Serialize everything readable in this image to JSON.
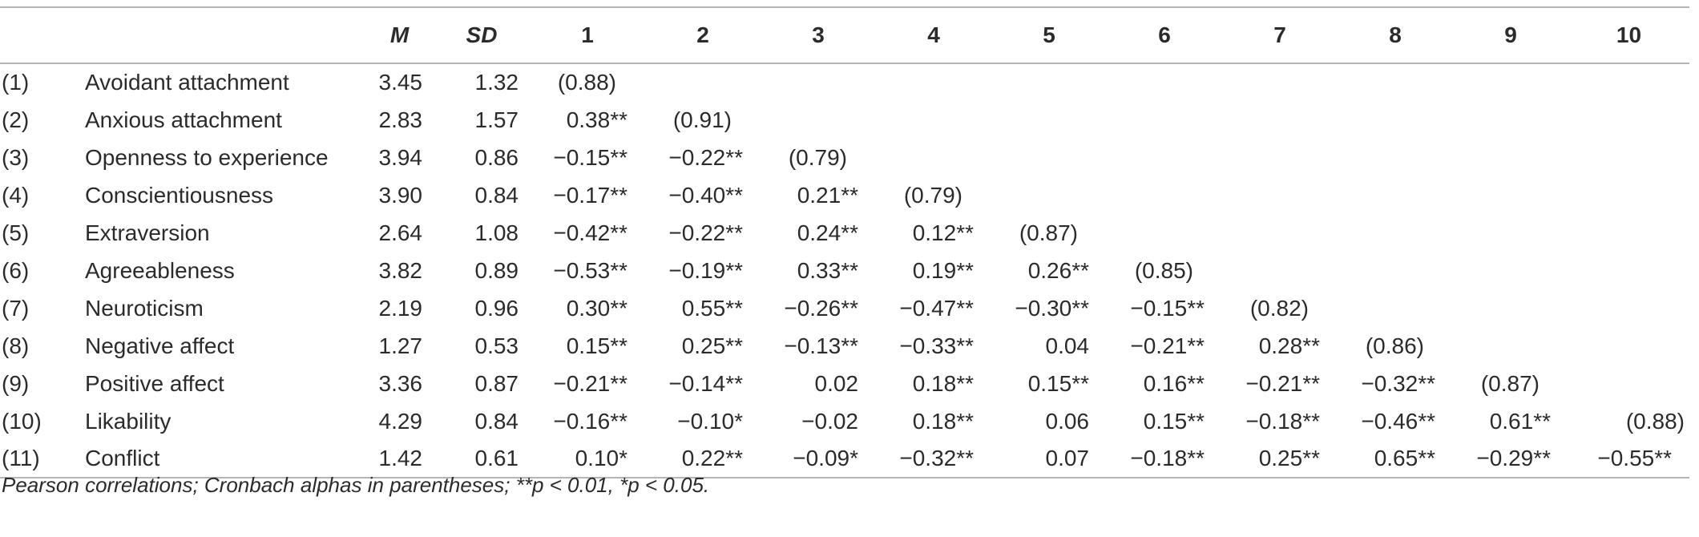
{
  "table": {
    "headers": [
      "",
      "",
      "M",
      "SD",
      "1",
      "2",
      "3",
      "4",
      "5",
      "6",
      "7",
      "8",
      "9",
      "10"
    ],
    "rows": [
      {
        "num": "(1)",
        "name": "Avoidant attachment",
        "m": "3.45",
        "sd": "1.32",
        "corr": [
          "(0.88)",
          "",
          "",
          "",
          "",
          "",
          "",
          "",
          "",
          ""
        ]
      },
      {
        "num": "(2)",
        "name": "Anxious attachment",
        "m": "2.83",
        "sd": "1.57",
        "corr": [
          "0.38**",
          "(0.91)",
          "",
          "",
          "",
          "",
          "",
          "",
          "",
          ""
        ]
      },
      {
        "num": "(3)",
        "name": "Openness to experience",
        "m": "3.94",
        "sd": "0.86",
        "corr": [
          "−0.15**",
          "−0.22**",
          "(0.79)",
          "",
          "",
          "",
          "",
          "",
          "",
          ""
        ]
      },
      {
        "num": "(4)",
        "name": "Conscientiousness",
        "m": "3.90",
        "sd": "0.84",
        "corr": [
          "−0.17**",
          "−0.40**",
          "0.21**",
          "(0.79)",
          "",
          "",
          "",
          "",
          "",
          ""
        ]
      },
      {
        "num": "(5)",
        "name": "Extraversion",
        "m": "2.64",
        "sd": "1.08",
        "corr": [
          "−0.42**",
          "−0.22**",
          "0.24**",
          "0.12**",
          "(0.87)",
          "",
          "",
          "",
          "",
          ""
        ]
      },
      {
        "num": "(6)",
        "name": "Agreeableness",
        "m": "3.82",
        "sd": "0.89",
        "corr": [
          "−0.53**",
          "−0.19**",
          "0.33**",
          "0.19**",
          "0.26**",
          "(0.85)",
          "",
          "",
          "",
          ""
        ]
      },
      {
        "num": "(7)",
        "name": "Neuroticism",
        "m": "2.19",
        "sd": "0.96",
        "corr": [
          "0.30**",
          "0.55**",
          "−0.26**",
          "−0.47**",
          "−0.30**",
          "−0.15**",
          "(0.82)",
          "",
          "",
          ""
        ]
      },
      {
        "num": "(8)",
        "name": "Negative affect",
        "m": "1.27",
        "sd": "0.53",
        "corr": [
          "0.15**",
          "0.25**",
          "−0.13**",
          "−0.33**",
          "0.04",
          "−0.21**",
          "0.28**",
          "(0.86)",
          "",
          ""
        ]
      },
      {
        "num": "(9)",
        "name": "Positive affect",
        "m": "3.36",
        "sd": "0.87",
        "corr": [
          "−0.21**",
          "−0.14**",
          "0.02",
          "0.18**",
          "0.15**",
          "0.16**",
          "−0.21**",
          "−0.32**",
          "(0.87)",
          ""
        ]
      },
      {
        "num": "(10)",
        "name": "Likability",
        "m": "4.29",
        "sd": "0.84",
        "corr": [
          "−0.16**",
          "−0.10*",
          "−0.02",
          "0.18**",
          "0.06",
          "0.15**",
          "−0.18**",
          "−0.46**",
          "0.61**",
          "(0.88)"
        ]
      },
      {
        "num": "(11)",
        "name": "Conflict",
        "m": "1.42",
        "sd": "0.61",
        "corr": [
          "0.10*",
          "0.22**",
          "−0.09*",
          "−0.32**",
          "0.07",
          "−0.18**",
          "0.25**",
          "0.65**",
          "−0.29**",
          "−0.55**"
        ]
      }
    ]
  },
  "footnote": "Pearson correlations; Cronbach alphas in parentheses; **p < 0.01, *p < 0.05."
}
